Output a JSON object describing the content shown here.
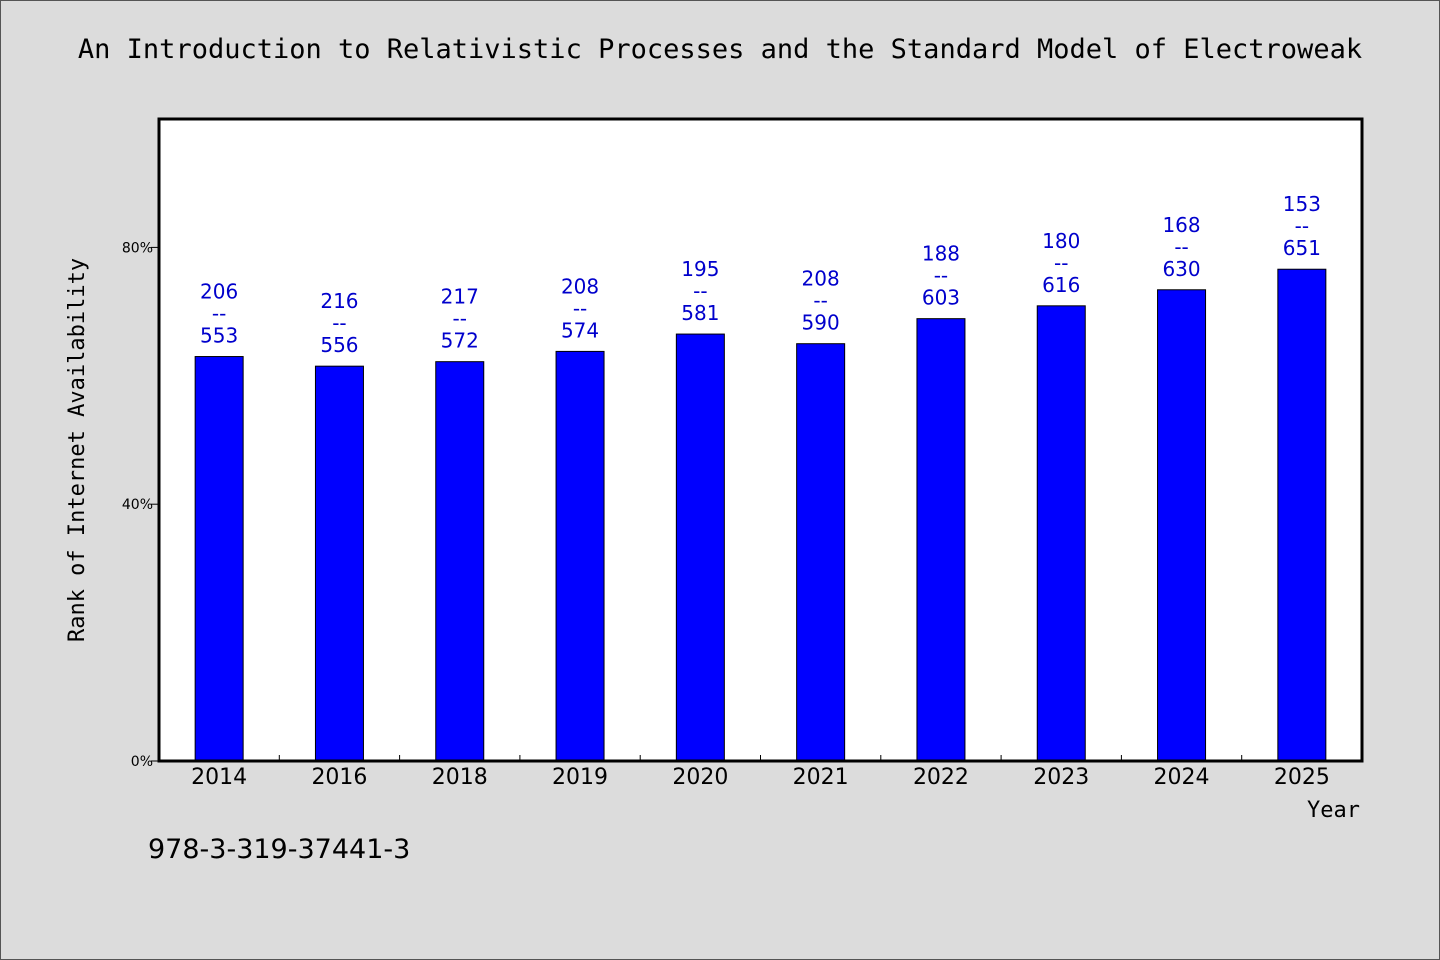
{
  "chart_data": {
    "type": "bar",
    "title": "An Introduction to Relativistic Processes and the Standard Model of Electroweak",
    "xlabel": "Year",
    "ylabel": "Rank of Internet Availability",
    "categories": [
      "2014",
      "2016",
      "2018",
      "2019",
      "2020",
      "2021",
      "2022",
      "2023",
      "2024",
      "2025"
    ],
    "values": [
      63,
      61.5,
      62.2,
      63.8,
      66.5,
      65,
      68.9,
      70.9,
      73.4,
      76.6
    ],
    "labels": [
      [
        "206",
        "--",
        "553"
      ],
      [
        "216",
        "--",
        "556"
      ],
      [
        "217",
        "--",
        "572"
      ],
      [
        "208",
        "--",
        "574"
      ],
      [
        "195",
        "--",
        "581"
      ],
      [
        "208",
        "--",
        "590"
      ],
      [
        "188",
        "--",
        "603"
      ],
      [
        "180",
        "--",
        "616"
      ],
      [
        "168",
        "--",
        "630"
      ],
      [
        "153",
        "--",
        "651"
      ]
    ],
    "ylim": [
      0,
      100
    ],
    "yticks": [
      0,
      40,
      80
    ],
    "ytick_labels": [
      "0%",
      "40%",
      "80%"
    ],
    "grid": false,
    "legend": "none",
    "bar_color": "#0000ff",
    "label_color": "#0000cc",
    "plot_background": "#ffffff",
    "page_background": "#dcdcdc"
  },
  "footer": {
    "isbn": "978-3-319-37441-3"
  }
}
